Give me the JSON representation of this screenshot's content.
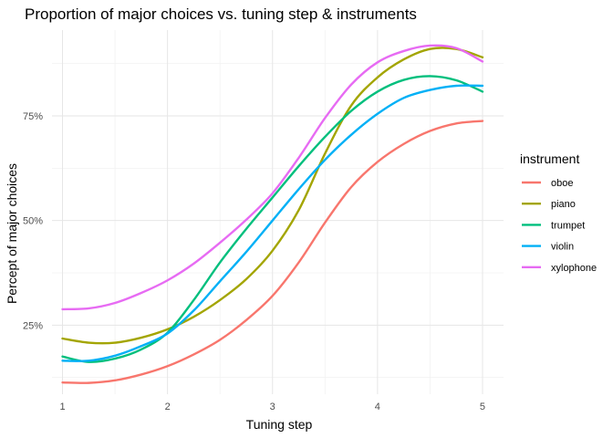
{
  "chart_data": {
    "type": "line",
    "title": "Proportion of major choices vs. tuning step & instruments",
    "xlabel": "Tuning step",
    "ylabel": "Percept of major choices",
    "xlim": [
      0.9,
      5.2
    ],
    "ylim": [
      0.085,
      0.955
    ],
    "x_ticks": [
      1,
      2,
      3,
      4,
      5
    ],
    "x_tick_labels": [
      "1",
      "2",
      "3",
      "4",
      "5"
    ],
    "y_ticks": [
      0.25,
      0.5,
      0.75
    ],
    "y_tick_labels": [
      "25%",
      "50%",
      "75%"
    ],
    "grid": true,
    "legend": {
      "title": "instrument",
      "position": "right"
    },
    "x": [
      1.0,
      1.25,
      1.5,
      1.75,
      2.0,
      2.25,
      2.5,
      2.75,
      3.0,
      3.25,
      3.5,
      3.75,
      4.0,
      4.25,
      4.5,
      4.75,
      5.0
    ],
    "series": [
      {
        "name": "oboe",
        "color": "#F8766D",
        "values": [
          0.113,
          0.112,
          0.118,
          0.132,
          0.152,
          0.18,
          0.215,
          0.262,
          0.32,
          0.4,
          0.495,
          0.58,
          0.64,
          0.683,
          0.714,
          0.732,
          0.738
        ]
      },
      {
        "name": "piano",
        "color": "#A3A500",
        "values": [
          0.218,
          0.208,
          0.208,
          0.22,
          0.24,
          0.27,
          0.31,
          0.36,
          0.428,
          0.525,
          0.66,
          0.775,
          0.842,
          0.885,
          0.91,
          0.91,
          0.89
        ]
      },
      {
        "name": "trumpet",
        "color": "#00BF7D",
        "values": [
          0.175,
          0.162,
          0.17,
          0.192,
          0.232,
          0.31,
          0.4,
          0.48,
          0.555,
          0.63,
          0.7,
          0.762,
          0.808,
          0.836,
          0.845,
          0.835,
          0.808
        ]
      },
      {
        "name": "violin",
        "color": "#00B0F6",
        "values": [
          0.165,
          0.165,
          0.177,
          0.2,
          0.23,
          0.285,
          0.355,
          0.425,
          0.5,
          0.575,
          0.645,
          0.705,
          0.755,
          0.793,
          0.812,
          0.822,
          0.822
        ]
      },
      {
        "name": "xylophone",
        "color": "#E76BF3",
        "values": [
          0.288,
          0.29,
          0.303,
          0.327,
          0.357,
          0.397,
          0.447,
          0.502,
          0.565,
          0.65,
          0.745,
          0.825,
          0.878,
          0.905,
          0.918,
          0.912,
          0.88
        ]
      }
    ]
  }
}
